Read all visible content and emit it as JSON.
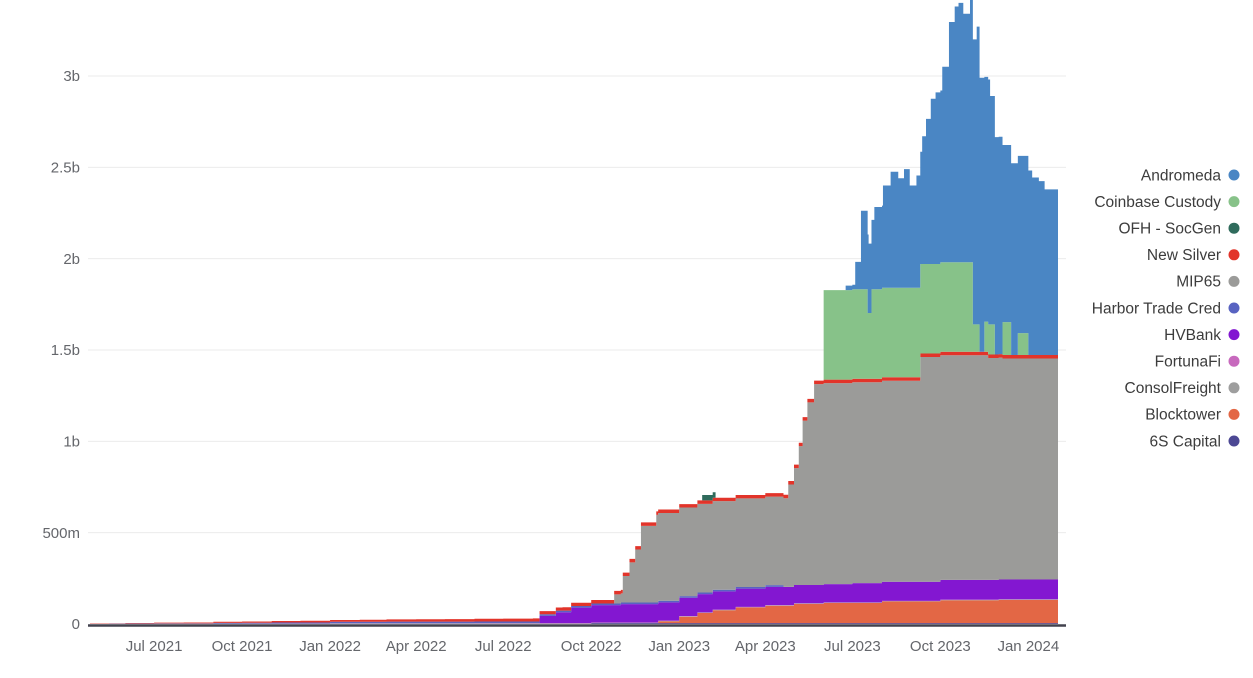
{
  "chart_data": {
    "type": "area",
    "stacked": true,
    "interpolation": "step-after",
    "title": "",
    "xlabel": "",
    "ylabel": "",
    "grid": "horizontal",
    "legend_position": "right",
    "x_range": [
      "2021-04-25",
      "2024-02-01"
    ],
    "ylim_millions": [
      0,
      3500
    ],
    "y_axis": {
      "ticks": [
        {
          "label": "0",
          "value_m": 0
        },
        {
          "label": "500m",
          "value_m": 500
        },
        {
          "label": "1b",
          "value_m": 1000
        },
        {
          "label": "1.5b",
          "value_m": 1500
        },
        {
          "label": "2b",
          "value_m": 2000
        },
        {
          "label": "2.5b",
          "value_m": 2500
        },
        {
          "label": "3b",
          "value_m": 3000
        }
      ]
    },
    "x_axis": {
      "ticks": [
        {
          "label": "Jul 2021",
          "date": "2021-07-01"
        },
        {
          "label": "Oct 2021",
          "date": "2021-10-01"
        },
        {
          "label": "Jan 2022",
          "date": "2022-01-01"
        },
        {
          "label": "Apr 2022",
          "date": "2022-04-01"
        },
        {
          "label": "Jul 2022",
          "date": "2022-07-01"
        },
        {
          "label": "Oct 2022",
          "date": "2022-10-01"
        },
        {
          "label": "Jan 2023",
          "date": "2023-01-01"
        },
        {
          "label": "Apr 2023",
          "date": "2023-04-01"
        },
        {
          "label": "Jul 2023",
          "date": "2023-07-01"
        },
        {
          "label": "Oct 2023",
          "date": "2023-10-01"
        },
        {
          "label": "Jan 2024",
          "date": "2024-01-01"
        }
      ]
    },
    "legend": [
      {
        "label": "Andromeda",
        "color": "#4a86c4"
      },
      {
        "label": "Coinbase Custody",
        "color": "#87c289"
      },
      {
        "label": "OFH - SocGen",
        "color": "#2f6b5c"
      },
      {
        "label": "New Silver",
        "color": "#e2342a"
      },
      {
        "label": "MIP65",
        "color": "#9b9b99"
      },
      {
        "label": "Harbor Trade Cred",
        "color": "#5863c1"
      },
      {
        "label": "HVBank",
        "color": "#8317d1"
      },
      {
        "label": "FortunaFi",
        "color": "#c769bd"
      },
      {
        "label": "ConsolFreight",
        "color": "#9e9e9e"
      },
      {
        "label": "Blocktower",
        "color": "#e36745"
      },
      {
        "label": "6S Capital",
        "color": "#4c4894"
      }
    ],
    "series_unit": "millions",
    "series": [
      {
        "name": "6S Capital",
        "color": "#4c4894",
        "points": [
          [
            "2021-04-25",
            1
          ],
          [
            "2022-10-01",
            5
          ]
        ]
      },
      {
        "name": "Blocktower",
        "color": "#e36745",
        "points": [
          [
            "2022-12-10",
            10
          ],
          [
            "2023-01-01",
            35
          ],
          [
            "2023-01-20",
            55
          ],
          [
            "2023-02-05",
            70
          ],
          [
            "2023-03-01",
            85
          ],
          [
            "2023-04-01",
            95
          ],
          [
            "2023-05-01",
            105
          ],
          [
            "2023-06-01",
            110
          ],
          [
            "2023-08-01",
            118
          ],
          [
            "2023-10-01",
            125
          ],
          [
            "2023-12-01",
            127
          ]
        ]
      },
      {
        "name": "ConsolFreight",
        "color": "#9e9e9e",
        "points": [
          [
            "2021-06-01",
            0.5
          ],
          [
            "2021-09-01",
            1
          ],
          [
            "2022-01-01",
            2
          ]
        ]
      },
      {
        "name": "FortunaFi",
        "color": "#c769bd",
        "points": [
          [
            "2021-10-01",
            0.5
          ],
          [
            "2022-01-01",
            1
          ],
          [
            "2022-06-01",
            1.5
          ]
        ]
      },
      {
        "name": "HVBank",
        "color": "#8317d1",
        "points": [
          [
            "2022-08-08",
            40
          ],
          [
            "2022-08-25",
            60
          ],
          [
            "2022-09-10",
            85
          ],
          [
            "2022-10-01",
            95
          ],
          [
            "2022-11-01",
            100
          ],
          [
            "2023-07-01",
            105
          ],
          [
            "2023-10-01",
            108
          ]
        ]
      },
      {
        "name": "Harbor Trade Cred",
        "color": "#5863c1",
        "points": [
          [
            "2021-05-15",
            1
          ],
          [
            "2021-07-01",
            2
          ],
          [
            "2021-09-01",
            4
          ],
          [
            "2021-11-01",
            6
          ],
          [
            "2022-01-01",
            8
          ],
          [
            "2022-03-01",
            9
          ],
          [
            "2023-04-20",
            0
          ]
        ]
      },
      {
        "name": "MIP65",
        "color": "#9b9b99",
        "points": [
          [
            "2022-10-25",
            50
          ],
          [
            "2022-11-03",
            145
          ],
          [
            "2022-11-10",
            220
          ],
          [
            "2022-11-16",
            290
          ],
          [
            "2022-11-22",
            420
          ],
          [
            "2022-12-08",
            480
          ],
          [
            "2023-01-01",
            485
          ],
          [
            "2023-04-25",
            560
          ],
          [
            "2023-05-01",
            640
          ],
          [
            "2023-05-06",
            760
          ],
          [
            "2023-05-10",
            900
          ],
          [
            "2023-05-15",
            1000
          ],
          [
            "2023-05-22",
            1100
          ],
          [
            "2023-09-10",
            1230
          ],
          [
            "2023-11-20",
            1215
          ],
          [
            "2023-12-05",
            1210
          ]
        ]
      },
      {
        "name": "New Silver",
        "color": "#e2342a",
        "points": [
          [
            "2021-04-25",
            1.5
          ],
          [
            "2021-06-01",
            3
          ],
          [
            "2021-07-01",
            4
          ],
          [
            "2021-08-01",
            5
          ],
          [
            "2021-09-01",
            6
          ],
          [
            "2021-10-01",
            7
          ],
          [
            "2021-11-01",
            8
          ],
          [
            "2021-12-01",
            9
          ],
          [
            "2022-01-01",
            10
          ],
          [
            "2022-02-01",
            11
          ],
          [
            "2022-03-01",
            12
          ],
          [
            "2022-04-01",
            13
          ],
          [
            "2022-05-01",
            14
          ],
          [
            "2022-06-01",
            15
          ],
          [
            "2022-07-01",
            16
          ],
          [
            "2022-08-01",
            17
          ],
          [
            "2022-09-01",
            18
          ],
          [
            "2022-10-01",
            19
          ]
        ]
      },
      {
        "name": "OFH - SocGen",
        "color": "#2f6b5c",
        "points": [
          [
            "2023-01-25",
            30
          ],
          [
            "2023-02-08",
            0
          ]
        ]
      },
      {
        "name": "Coinbase Custody",
        "color": "#87c289",
        "points": [
          [
            "2023-06-01",
            490
          ],
          [
            "2023-07-17",
            360
          ],
          [
            "2023-07-21",
            490
          ],
          [
            "2023-11-04",
            150
          ],
          [
            "2023-11-11",
            0
          ],
          [
            "2023-11-16",
            165
          ],
          [
            "2023-11-27",
            0
          ],
          [
            "2023-12-05",
            180
          ],
          [
            "2023-12-14",
            0
          ],
          [
            "2023-12-21",
            120
          ],
          [
            "2024-01-01",
            0
          ]
        ]
      },
      {
        "name": "Andromeda",
        "color": "#4a86c4",
        "points": [
          [
            "2023-06-24",
            25
          ],
          [
            "2023-07-04",
            150
          ],
          [
            "2023-07-10",
            430
          ],
          [
            "2023-07-18",
            380
          ],
          [
            "2023-07-24",
            450
          ],
          [
            "2023-08-02",
            560
          ],
          [
            "2023-08-10",
            635
          ],
          [
            "2023-08-18",
            600
          ],
          [
            "2023-08-24",
            650
          ],
          [
            "2023-08-30",
            560
          ],
          [
            "2023-09-06",
            615
          ],
          [
            "2023-09-12",
            700
          ],
          [
            "2023-09-16",
            795
          ],
          [
            "2023-09-21",
            905
          ],
          [
            "2023-09-26",
            940
          ],
          [
            "2023-10-03",
            1070
          ],
          [
            "2023-10-10",
            1315
          ],
          [
            "2023-10-16",
            1400
          ],
          [
            "2023-10-20",
            1420
          ],
          [
            "2023-10-25",
            1360
          ],
          [
            "2023-11-01",
            1560
          ],
          [
            "2023-11-08",
            1630
          ],
          [
            "2023-11-11",
            1500
          ],
          [
            "2023-11-16",
            1340
          ],
          [
            "2023-11-22",
            1250
          ],
          [
            "2023-11-27",
            1190
          ],
          [
            "2023-12-05",
            970
          ],
          [
            "2023-12-14",
            1050
          ],
          [
            "2023-12-21",
            970
          ],
          [
            "2024-01-01",
            1010
          ],
          [
            "2024-01-05",
            972
          ],
          [
            "2024-01-12",
            952
          ],
          [
            "2024-01-18",
            907
          ],
          [
            "2024-02-01",
            907
          ]
        ]
      }
    ]
  },
  "colors": {
    "background": "#ffffff",
    "gridline": "#ebebeb",
    "axis_line": "#42424e",
    "tick_text": "#64666b",
    "legend_text": "#3c3c3c"
  }
}
